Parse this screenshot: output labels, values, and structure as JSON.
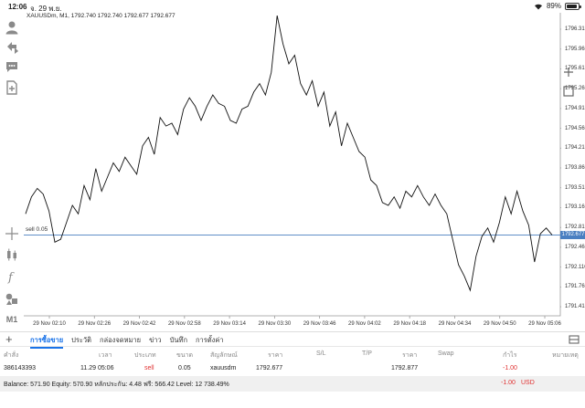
{
  "status_bar": {
    "time": "12:06",
    "date": "จ. 29 พ.ย.",
    "battery": "89%",
    "battery_level": 0.89
  },
  "chart": {
    "header": "XAUUSDm, M1, 1792.740 1792.740 1792.677 1792.677",
    "sell_label": "sell 0.05",
    "current_price_tag": "1792.677",
    "current_price": 1792.677,
    "sell_price": 1792.877,
    "y_labels": [
      "1796.310",
      "1795.960",
      "1795.610",
      "1795.260",
      "1794.910",
      "1794.560",
      "1794.210",
      "1793.860",
      "1793.510",
      "1793.160",
      "1792.810",
      "1792.460",
      "1792.110",
      "1791.760",
      "1791.410"
    ],
    "x_labels": [
      "29 Nov 02:10",
      "29 Nov 02:26",
      "29 Nov 02:42",
      "29 Nov 02:58",
      "29 Nov 03:14",
      "29 Nov 03:30",
      "29 Nov 03:46",
      "29 Nov 04:02",
      "29 Nov 04:18",
      "29 Nov 04:34",
      "29 Nov 04:50",
      "29 Nov 05:06"
    ],
    "line_color": "#111111",
    "sell_line_color": "#4a7fc1"
  },
  "chart_data": {
    "type": "line",
    "ylim": [
      1791.41,
      1796.31
    ],
    "series": [
      {
        "values": [
          1793.05,
          1793.35,
          1793.5,
          1793.4,
          1793.1,
          1792.55,
          1792.6,
          1792.9,
          1793.2,
          1793.05,
          1793.55,
          1793.3,
          1793.85,
          1793.45,
          1793.7,
          1793.95,
          1793.8,
          1794.05,
          1793.9,
          1793.75,
          1794.25,
          1794.4,
          1794.1,
          1794.75,
          1794.6,
          1794.65,
          1794.45,
          1794.9,
          1795.1,
          1794.95,
          1794.7,
          1794.95,
          1795.15,
          1795.0,
          1794.95,
          1794.7,
          1794.65,
          1794.9,
          1794.95,
          1795.2,
          1795.35,
          1795.15,
          1795.55,
          1796.55,
          1796.05,
          1795.7,
          1795.85,
          1795.35,
          1795.15,
          1795.4,
          1794.95,
          1795.2,
          1794.6,
          1794.85,
          1794.25,
          1794.65,
          1794.4,
          1794.15,
          1794.05,
          1793.65,
          1793.55,
          1793.25,
          1793.2,
          1793.35,
          1793.15,
          1793.45,
          1793.35,
          1793.55,
          1793.35,
          1793.2,
          1793.4,
          1793.2,
          1793.05,
          1792.6,
          1792.15,
          1791.95,
          1791.7,
          1792.3,
          1792.65,
          1792.8,
          1792.55,
          1792.9,
          1793.35,
          1793.05,
          1793.45,
          1793.1,
          1792.85,
          1792.2,
          1792.7,
          1792.8,
          1792.677
        ]
      }
    ],
    "grid": false,
    "sell_level": 1792.877
  },
  "tabs": [
    "การซื้อขาย",
    "ประวัติ",
    "กล่องจดหมาย",
    "ข่าว",
    "บันทึก",
    "การตั้งค่า"
  ],
  "active_tab": 0,
  "table": {
    "headers": [
      "คำสั่ง",
      "เวลา",
      "ประเภท",
      "ขนาด",
      "สัญลักษณ์",
      "ราคา",
      "S/L",
      "T/P",
      "ราคา",
      "Swap",
      "กำไร",
      "หมายเหตุ"
    ],
    "row": [
      "386143393",
      "11.29 05:06",
      "sell",
      "0.05",
      "xauusdm",
      "1792.677",
      "",
      "",
      "1792.877",
      "",
      "-1.00",
      ""
    ]
  },
  "balance": {
    "text": "Balance: 571.90 Equity: 570.90 หลักประกัน: 4.48 ฟรี: 566.42 Level: 12 738.49%",
    "profit": "-1.00",
    "currency": "USD"
  }
}
